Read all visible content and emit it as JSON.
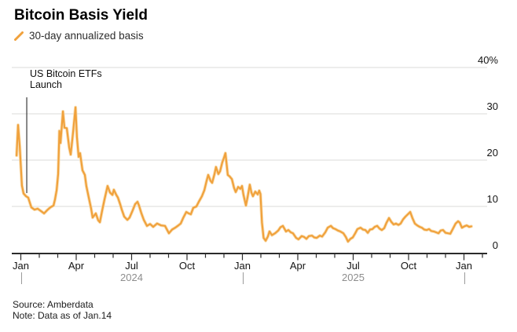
{
  "header": {
    "title": "Bitcoin Basis Yield",
    "legend": {
      "label": "30-day annualized basis"
    }
  },
  "annotation": {
    "line1": "US Bitcoin ETFs",
    "line2": "Launch"
  },
  "footer": {
    "source": "Source: Amberdata",
    "note": "Note: Data as of Jan.14"
  },
  "colors": {
    "line": "#F0A13C",
    "line_halo": "#F8D8A4",
    "grid": "#DBDBD8",
    "axis": "#2B2B2B",
    "tick": "#2B2B2B",
    "annotation_line": "#3A3A3A",
    "label_text": "#141414",
    "muted_text": "#8D8D8D",
    "background": "#FFFFFF"
  },
  "chart_data": {
    "type": "line",
    "title": "Bitcoin Basis Yield",
    "series_name": "30-day annualized basis",
    "unit": "%",
    "y_axis": {
      "position": "right",
      "range": [
        0,
        40
      ],
      "ticks": [
        0,
        10,
        20,
        30,
        40
      ],
      "tick_labels": [
        "0",
        "10",
        "20",
        "30",
        "40%"
      ],
      "grid": true
    },
    "x_axis": {
      "start": "Jan 2024",
      "end": "Jan 2026",
      "minor_tick_interval": "month",
      "major_tick_months": [
        0,
        3,
        6,
        9,
        12,
        15,
        18,
        21,
        24
      ],
      "major_tick_labels": [
        "Jan",
        "Apr",
        "Jul",
        "Oct",
        "Jan",
        "Apr",
        "Jul",
        "Oct",
        "Jan"
      ],
      "year_labels": [
        {
          "text": "2024",
          "month": 6
        },
        {
          "text": "2025",
          "month": 18
        }
      ],
      "year_separator_months": [
        0,
        12,
        24
      ]
    },
    "annotation": {
      "text": "US Bitcoin ETFs Launch",
      "month": 0.3,
      "points_to_value": 12.2
    },
    "points_format": "[months_since_Jan_1_2024, basis_percent]",
    "points": [
      [
        -0.23,
        21.0
      ],
      [
        -0.15,
        27.6
      ],
      [
        -0.06,
        23.0
      ],
      [
        0.06,
        14.5
      ],
      [
        0.15,
        12.8
      ],
      [
        0.28,
        12.2
      ],
      [
        0.4,
        11.9
      ],
      [
        0.57,
        9.8
      ],
      [
        0.74,
        9.3
      ],
      [
        0.91,
        9.5
      ],
      [
        1.09,
        9.0
      ],
      [
        1.26,
        8.5
      ],
      [
        1.43,
        9.2
      ],
      [
        1.6,
        9.8
      ],
      [
        1.77,
        10.2
      ],
      [
        1.85,
        11.5
      ],
      [
        1.94,
        13.5
      ],
      [
        2.02,
        17.0
      ],
      [
        2.09,
        26.3
      ],
      [
        2.15,
        23.7
      ],
      [
        2.28,
        30.5
      ],
      [
        2.36,
        27.0
      ],
      [
        2.49,
        26.9
      ],
      [
        2.62,
        22.7
      ],
      [
        2.7,
        21.2
      ],
      [
        2.83,
        26.0
      ],
      [
        2.96,
        31.4
      ],
      [
        3.04,
        25.0
      ],
      [
        3.13,
        20.7
      ],
      [
        3.21,
        21.5
      ],
      [
        3.34,
        17.8
      ],
      [
        3.47,
        16.8
      ],
      [
        3.55,
        14.4
      ],
      [
        3.68,
        11.9
      ],
      [
        3.81,
        9.5
      ],
      [
        3.89,
        7.6
      ],
      [
        4.06,
        8.5
      ],
      [
        4.19,
        7.0
      ],
      [
        4.28,
        6.6
      ],
      [
        4.4,
        9.0
      ],
      [
        4.53,
        11.5
      ],
      [
        4.7,
        14.4
      ],
      [
        4.83,
        13.0
      ],
      [
        4.96,
        12.5
      ],
      [
        5.04,
        13.6
      ],
      [
        5.17,
        12.5
      ],
      [
        5.26,
        11.9
      ],
      [
        5.38,
        10.5
      ],
      [
        5.47,
        9.3
      ],
      [
        5.6,
        7.8
      ],
      [
        5.77,
        7.1
      ],
      [
        5.89,
        7.6
      ],
      [
        6.02,
        8.8
      ],
      [
        6.19,
        10.5
      ],
      [
        6.32,
        11.0
      ],
      [
        6.4,
        10.2
      ],
      [
        6.53,
        8.5
      ],
      [
        6.66,
        7.1
      ],
      [
        6.83,
        5.8
      ],
      [
        7.0,
        6.2
      ],
      [
        7.17,
        5.6
      ],
      [
        7.38,
        6.3
      ],
      [
        7.6,
        5.9
      ],
      [
        7.81,
        5.8
      ],
      [
        8.02,
        4.2
      ],
      [
        8.19,
        5.0
      ],
      [
        8.36,
        5.4
      ],
      [
        8.53,
        5.9
      ],
      [
        8.66,
        6.3
      ],
      [
        8.79,
        7.5
      ],
      [
        8.96,
        8.8
      ],
      [
        9.09,
        8.5
      ],
      [
        9.21,
        8.3
      ],
      [
        9.34,
        9.7
      ],
      [
        9.51,
        10.0
      ],
      [
        9.64,
        11.0
      ],
      [
        9.81,
        12.2
      ],
      [
        9.94,
        13.5
      ],
      [
        10.06,
        15.5
      ],
      [
        10.15,
        16.8
      ],
      [
        10.28,
        15.5
      ],
      [
        10.36,
        15.1
      ],
      [
        10.49,
        17.0
      ],
      [
        10.57,
        18.5
      ],
      [
        10.7,
        17.0
      ],
      [
        10.79,
        17.6
      ],
      [
        10.91,
        19.5
      ],
      [
        11.0,
        20.5
      ],
      [
        11.08,
        21.5
      ],
      [
        11.21,
        16.8
      ],
      [
        11.3,
        16.5
      ],
      [
        11.43,
        15.9
      ],
      [
        11.55,
        14.0
      ],
      [
        11.64,
        13.1
      ],
      [
        11.77,
        14.2
      ],
      [
        11.89,
        13.8
      ],
      [
        11.98,
        14.4
      ],
      [
        12.06,
        12.5
      ],
      [
        12.19,
        10.2
      ],
      [
        12.28,
        12.0
      ],
      [
        12.4,
        14.7
      ],
      [
        12.49,
        13.0
      ],
      [
        12.57,
        12.2
      ],
      [
        12.7,
        13.2
      ],
      [
        12.83,
        12.6
      ],
      [
        12.91,
        13.4
      ],
      [
        12.98,
        12.7
      ],
      [
        13.06,
        6.5
      ],
      [
        13.15,
        3.2
      ],
      [
        13.26,
        2.6
      ],
      [
        13.38,
        3.5
      ],
      [
        13.47,
        4.6
      ],
      [
        13.6,
        3.8
      ],
      [
        13.77,
        4.2
      ],
      [
        13.94,
        4.8
      ],
      [
        14.06,
        5.5
      ],
      [
        14.19,
        5.8
      ],
      [
        14.36,
        4.6
      ],
      [
        14.49,
        4.9
      ],
      [
        14.62,
        4.4
      ],
      [
        14.74,
        4.2
      ],
      [
        14.91,
        3.2
      ],
      [
        15.04,
        2.9
      ],
      [
        15.21,
        3.6
      ],
      [
        15.34,
        3.4
      ],
      [
        15.47,
        3.0
      ],
      [
        15.6,
        3.6
      ],
      [
        15.77,
        3.7
      ],
      [
        15.89,
        3.3
      ],
      [
        16.02,
        3.2
      ],
      [
        16.19,
        3.7
      ],
      [
        16.32,
        3.5
      ],
      [
        16.49,
        4.4
      ],
      [
        16.62,
        5.4
      ],
      [
        16.79,
        5.8
      ],
      [
        16.91,
        5.3
      ],
      [
        17.04,
        5.1
      ],
      [
        17.17,
        4.8
      ],
      [
        17.3,
        4.6
      ],
      [
        17.47,
        4.2
      ],
      [
        17.6,
        3.4
      ],
      [
        17.72,
        2.4
      ],
      [
        17.85,
        3.0
      ],
      [
        17.98,
        3.3
      ],
      [
        18.11,
        4.2
      ],
      [
        18.23,
        5.1
      ],
      [
        18.4,
        5.4
      ],
      [
        18.53,
        5.0
      ],
      [
        18.66,
        4.9
      ],
      [
        18.79,
        4.3
      ],
      [
        18.91,
        5.0
      ],
      [
        19.04,
        5.1
      ],
      [
        19.17,
        5.6
      ],
      [
        19.3,
        5.8
      ],
      [
        19.43,
        5.2
      ],
      [
        19.55,
        4.9
      ],
      [
        19.68,
        5.3
      ],
      [
        19.81,
        6.5
      ],
      [
        19.94,
        7.5
      ],
      [
        20.06,
        6.7
      ],
      [
        20.19,
        6.1
      ],
      [
        20.32,
        6.3
      ],
      [
        20.45,
        6.0
      ],
      [
        20.57,
        6.3
      ],
      [
        20.7,
        7.2
      ],
      [
        20.83,
        7.8
      ],
      [
        20.96,
        8.3
      ],
      [
        21.09,
        8.8
      ],
      [
        21.21,
        7.5
      ],
      [
        21.34,
        6.3
      ],
      [
        21.47,
        5.9
      ],
      [
        21.6,
        5.6
      ],
      [
        21.72,
        5.4
      ],
      [
        21.85,
        5.0
      ],
      [
        21.98,
        4.9
      ],
      [
        22.11,
        5.1
      ],
      [
        22.23,
        4.7
      ],
      [
        22.36,
        4.6
      ],
      [
        22.49,
        4.4
      ],
      [
        22.62,
        4.2
      ],
      [
        22.74,
        4.8
      ],
      [
        22.87,
        4.9
      ],
      [
        23.0,
        4.3
      ],
      [
        23.13,
        4.2
      ],
      [
        23.26,
        4.1
      ],
      [
        23.38,
        5.0
      ],
      [
        23.55,
        6.3
      ],
      [
        23.68,
        6.8
      ],
      [
        23.77,
        6.5
      ],
      [
        23.89,
        5.4
      ],
      [
        24.02,
        5.7
      ],
      [
        24.15,
        5.9
      ],
      [
        24.28,
        5.6
      ],
      [
        24.4,
        5.7
      ]
    ]
  }
}
